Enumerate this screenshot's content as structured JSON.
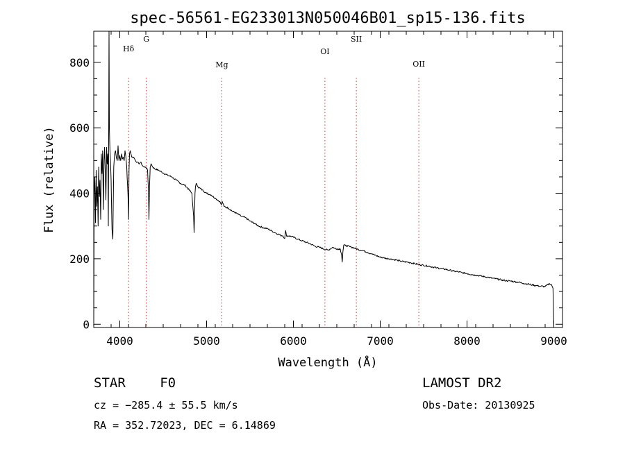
{
  "chart_data": {
    "type": "line",
    "title": "spec-56561-EG233013N050046B01_sp15-136.fits",
    "xlabel": "Wavelength (Å)",
    "ylabel": "Flux (relative)",
    "xlim": [
      3700,
      9100
    ],
    "ylim": [
      -10,
      895
    ],
    "xticks": [
      4000,
      5000,
      6000,
      7000,
      8000,
      9000
    ],
    "yticks": [
      0,
      200,
      400,
      600,
      800
    ],
    "grid": false,
    "series": [
      {
        "x": [
          3700,
          3705,
          3712,
          3720,
          3728,
          3735,
          3742,
          3750,
          3757,
          3765,
          3772,
          3780,
          3787,
          3795,
          3802,
          3810,
          3818,
          3825,
          3832,
          3840,
          3848,
          3855,
          3862,
          3868,
          3872,
          3876,
          3880,
          3886,
          3893,
          3900,
          3910,
          3920,
          3930,
          3940,
          3950,
          3960,
          3970,
          3980,
          3990,
          4000,
          4010,
          4020,
          4030,
          4040,
          4050,
          4060,
          4070,
          4080,
          4090,
          4095,
          4101,
          4106,
          4112,
          4120,
          4140,
          4160,
          4180,
          4200,
          4220,
          4240,
          4260,
          4280,
          4300,
          4320,
          4330,
          4336,
          4342,
          4350,
          4360,
          4380,
          4400,
          4450,
          4500,
          4550,
          4600,
          4650,
          4700,
          4750,
          4800,
          4830,
          4850,
          4856,
          4861,
          4866,
          4872,
          4880,
          4900,
          4950,
          5000,
          5050,
          5100,
          5150,
          5170,
          5180,
          5200,
          5250,
          5300,
          5350,
          5400,
          5450,
          5500,
          5550,
          5600,
          5650,
          5700,
          5750,
          5800,
          5850,
          5880,
          5900,
          5910,
          5920,
          5950,
          6000,
          6050,
          6100,
          6150,
          6200,
          6250,
          6300,
          6350,
          6400,
          6450,
          6500,
          6540,
          6555,
          6562,
          6570,
          6580,
          6600,
          6650,
          6700,
          6750,
          6800,
          6850,
          6900,
          6950,
          7000,
          7050,
          7100,
          7150,
          7200,
          7250,
          7300,
          7350,
          7400,
          7450,
          7500,
          7550,
          7600,
          7650,
          7700,
          7750,
          7800,
          7850,
          7900,
          7950,
          8000,
          8050,
          8100,
          8150,
          8200,
          8250,
          8300,
          8350,
          8400,
          8450,
          8500,
          8550,
          8600,
          8650,
          8700,
          8750,
          8800,
          8850,
          8900,
          8950,
          8970,
          8990,
          8995,
          9000
        ],
        "y": [
          0,
          400,
          450,
          310,
          470,
          360,
          420,
          300,
          480,
          390,
          440,
          320,
          520,
          460,
          530,
          350,
          500,
          540,
          470,
          380,
          540,
          490,
          520,
          300,
          580,
          895,
          600,
          530,
          500,
          440,
          290,
          260,
          480,
          520,
          530,
          510,
          500,
          545,
          500,
          515,
          500,
          520,
          505,
          510,
          500,
          530,
          510,
          480,
          420,
          390,
          320,
          470,
          520,
          530,
          510,
          510,
          500,
          495,
          490,
          495,
          485,
          480,
          480,
          470,
          410,
          320,
          420,
          480,
          490,
          480,
          475,
          470,
          462,
          455,
          450,
          440,
          430,
          425,
          410,
          400,
          330,
          280,
          335,
          400,
          420,
          430,
          420,
          410,
          400,
          395,
          385,
          375,
          365,
          375,
          360,
          355,
          345,
          338,
          330,
          325,
          315,
          308,
          300,
          295,
          292,
          285,
          278,
          272,
          270,
          262,
          286,
          270,
          270,
          266,
          260,
          255,
          250,
          245,
          238,
          235,
          230,
          226,
          235,
          230,
          230,
          212,
          190,
          222,
          242,
          240,
          237,
          233,
          228,
          225,
          220,
          215,
          210,
          205,
          202,
          200,
          198,
          195,
          192,
          190,
          188,
          185,
          182,
          180,
          178,
          175,
          172,
          170,
          168,
          165,
          162,
          160,
          157,
          155,
          152,
          150,
          148,
          145,
          143,
          140,
          138,
          135,
          133,
          132,
          130,
          128,
          125,
          123,
          120,
          118,
          116,
          115,
          124,
          122,
          110,
          50,
          -10
        ]
      }
    ],
    "lines": [
      {
        "label": "Hδ",
        "x": 4101
      },
      {
        "label": "G",
        "x": 4305
      },
      {
        "label": "Mg",
        "x": 5175
      },
      {
        "label": "OI",
        "x": 6363
      },
      {
        "label": "SII",
        "x": 6725
      },
      {
        "label": "OII",
        "x": 7445
      }
    ]
  },
  "info": {
    "star_type": "STAR",
    "subclass": "F0",
    "survey": "LAMOST DR2",
    "cz": "cz = −285.4 ± 55.5 km/s",
    "obs_date": "Obs-Date: 20130925",
    "radec": "RA = 352.72023, DEC =   6.14869"
  }
}
